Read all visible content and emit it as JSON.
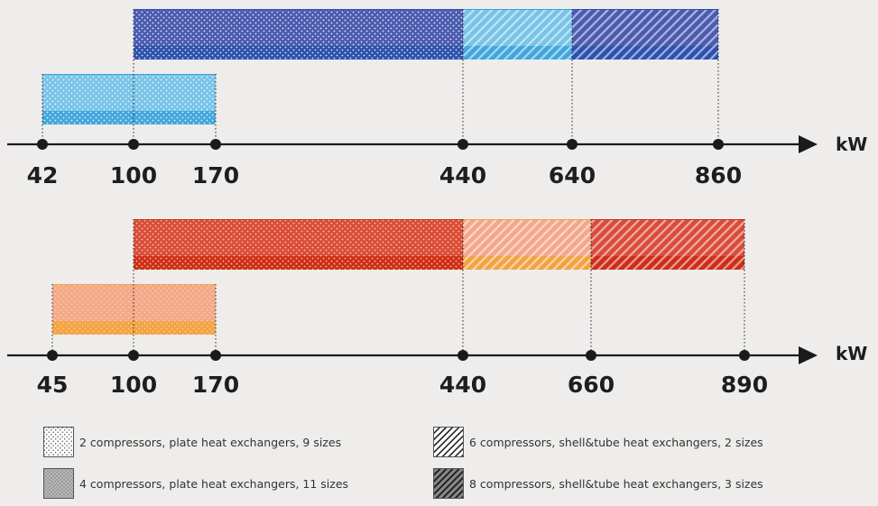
{
  "colors": {
    "background": "#eeedec",
    "blue_dark": "#4a5bb0",
    "blue_dark_band": "#2a50ae",
    "blue_light": "#63bbe6",
    "blue_light_band": "#3aa3dc",
    "red_dark": "#d94c3a",
    "red_dark_band": "#cc2a16",
    "orange_light": "#f39b79",
    "orange_light_band": "#f3a13a",
    "axis": "#1a1a1a"
  },
  "diagrams": [
    {
      "id": "blue",
      "unit": "kW",
      "ticks": [
        "42",
        "100",
        "170",
        "440",
        "640",
        "860"
      ],
      "ranges": [
        {
          "from": "100",
          "to": "440",
          "pattern": "dots",
          "palette": "dark",
          "row": "upper"
        },
        {
          "from": "440",
          "to": "640",
          "pattern": "stripes",
          "palette": "light",
          "row": "upper"
        },
        {
          "from": "640",
          "to": "860",
          "pattern": "stripes",
          "palette": "dark",
          "row": "upper"
        },
        {
          "from": "42",
          "to": "170",
          "pattern": "dots",
          "palette": "light",
          "row": "lower"
        }
      ]
    },
    {
      "id": "red",
      "unit": "kW",
      "ticks": [
        "45",
        "100",
        "170",
        "440",
        "660",
        "890"
      ],
      "ranges": [
        {
          "from": "100",
          "to": "440",
          "pattern": "dots",
          "palette": "dark",
          "row": "upper"
        },
        {
          "from": "440",
          "to": "660",
          "pattern": "stripes",
          "palette": "light",
          "row": "upper"
        },
        {
          "from": "660",
          "to": "890",
          "pattern": "stripes",
          "palette": "dark",
          "row": "upper"
        },
        {
          "from": "45",
          "to": "170",
          "pattern": "dots",
          "palette": "light",
          "row": "lower"
        }
      ]
    }
  ],
  "legend": [
    {
      "icon": "sparse-dots-swatch-icon",
      "text": "2 compressors, plate heat exchangers, 9 sizes"
    },
    {
      "icon": "dense-dots-swatch-icon",
      "text": "4 compressors, plate heat exchangers, 11 sizes"
    },
    {
      "icon": "light-stripes-swatch-icon",
      "text": "6 compressors, shell&tube heat exchangers, 2 sizes"
    },
    {
      "icon": "dark-stripes-swatch-icon",
      "text": "8 compressors, shell&tube heat exchangers, 3 sizes"
    }
  ]
}
